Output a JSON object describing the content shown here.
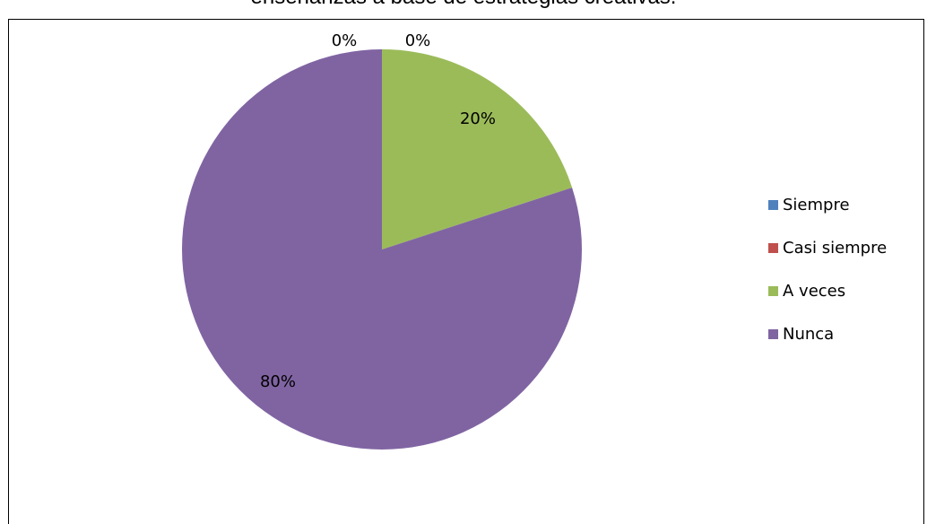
{
  "chart_data": {
    "type": "pie",
    "title": "enseñanzas a base de estrategias creativas.",
    "categories": [
      "Siempre",
      "Casi siempre",
      "A veces",
      "Nunca"
    ],
    "values": [
      0,
      0,
      20,
      80
    ],
    "labels": [
      "0%",
      "0%",
      "20%",
      "80%"
    ],
    "colors": [
      "#4f81bd",
      "#c0504d",
      "#9bbb59",
      "#8064a2"
    ],
    "legend_position": "right"
  }
}
